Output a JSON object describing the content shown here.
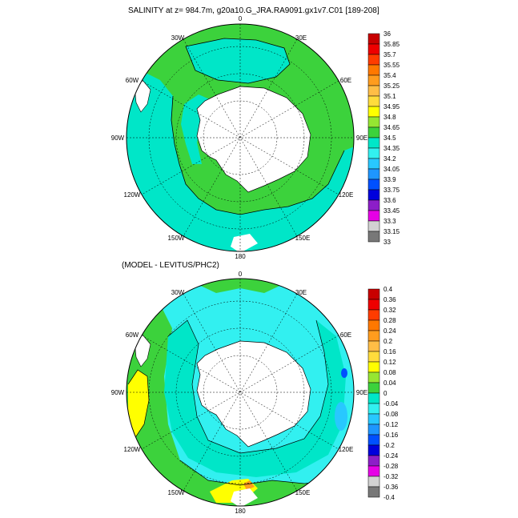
{
  "top_panel": {
    "title": "SALINITY at z= 984.7m, g20a10.G_JRA.RA9091.gx1v7.C01 [189-208]",
    "longitude_labels": [
      "0",
      "30E",
      "60E",
      "90E",
      "120E",
      "150E",
      "180",
      "150W",
      "120W",
      "90W",
      "60W",
      "30W"
    ],
    "colorbar": {
      "labels": [
        "36",
        "35.85",
        "35.7",
        "35.55",
        "35.4",
        "35.25",
        "35.1",
        "34.95",
        "34.8",
        "34.65",
        "34.5",
        "34.35",
        "34.2",
        "34.05",
        "33.9",
        "33.75",
        "33.6",
        "33.45",
        "33.3",
        "33.15",
        "33"
      ],
      "colors": [
        "#c80000",
        "#ee0000",
        "#ff3c00",
        "#ff7800",
        "#ff9c1e",
        "#ffbe46",
        "#ffdc3c",
        "#ffff00",
        "#96e632",
        "#3cd23c",
        "#00e6c8",
        "#32f0f0",
        "#28c8ff",
        "#1e96ff",
        "#0050ff",
        "#0000dc",
        "#8c1ec8",
        "#e600e6",
        "#d2d2d2",
        "#787878"
      ]
    }
  },
  "bottom_panel": {
    "title": "(MODEL - LEVITUS/PHC2)",
    "longitude_labels": [
      "0",
      "30E",
      "60E",
      "90E",
      "120E",
      "150E",
      "180",
      "150W",
      "120W",
      "90W",
      "60W",
      "30W"
    ],
    "colorbar": {
      "labels": [
        "0.4",
        "0.36",
        "0.32",
        "0.28",
        "0.24",
        "0.2",
        "0.16",
        "0.12",
        "0.08",
        "0.04",
        "0",
        "-0.04",
        "-0.08",
        "-0.12",
        "-0.16",
        "-0.2",
        "-0.24",
        "-0.28",
        "-0.32",
        "-0.36",
        "-0.4"
      ],
      "colors": [
        "#c80000",
        "#ee0000",
        "#ff3c00",
        "#ff7800",
        "#ff9c1e",
        "#ffbe46",
        "#ffdc3c",
        "#ffff00",
        "#96e632",
        "#3cd23c",
        "#00e6c8",
        "#32f0f0",
        "#28c8ff",
        "#1e96ff",
        "#0050ff",
        "#0000dc",
        "#8c1ec8",
        "#e600e6",
        "#d2d2d2",
        "#787878"
      ]
    }
  }
}
